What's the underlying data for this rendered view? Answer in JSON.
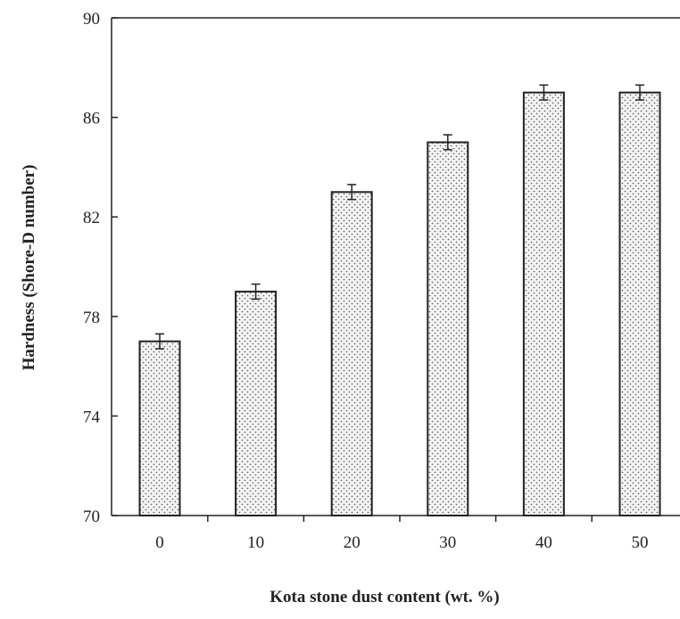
{
  "chart_data": {
    "type": "bar",
    "title": "",
    "xlabel": "Kota stone dust content (wt. %)",
    "ylabel": "Hardness (Shore-D number)",
    "categories": [
      "0",
      "10",
      "20",
      "30",
      "40",
      "50"
    ],
    "values": [
      77,
      79,
      83,
      85,
      87,
      87
    ],
    "error": [
      0.3,
      0.3,
      0.3,
      0.3,
      0.3,
      0.3
    ],
    "ylim": [
      70,
      90
    ],
    "yticks": [
      70,
      74,
      78,
      82,
      86,
      90
    ],
    "grid": false,
    "legend": "none",
    "bar_fill": "dotted-pattern",
    "colors": {
      "axis": "#222222",
      "bar_edge": "#222222",
      "bar_fill": "#eeeeee",
      "dots": "#555555"
    }
  }
}
